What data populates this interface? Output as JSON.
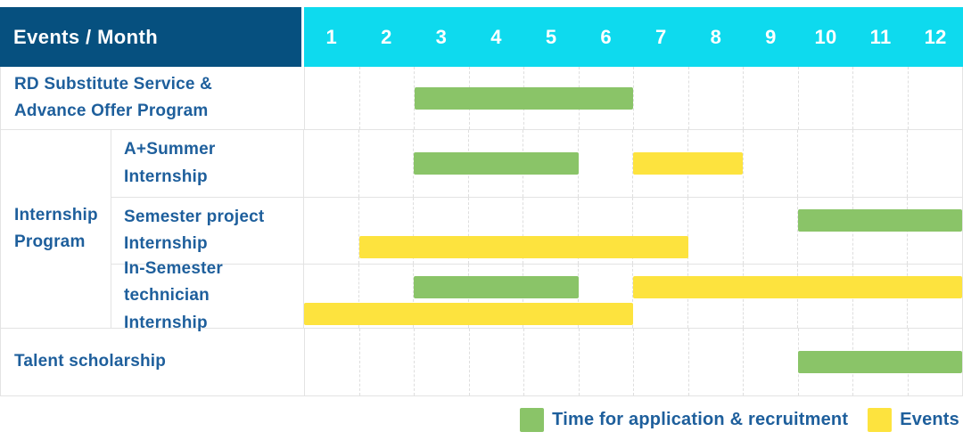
{
  "title": "Events / Month",
  "colors": {
    "header_bg": "#06507f",
    "month_header_bg": "#0edaee",
    "header_text": "#ffffff",
    "label_text": "#1e5f9c",
    "application_green": "#8ac468",
    "events_yellow": "#fde33e",
    "grid_line": "#e3e3e3"
  },
  "chart_data": {
    "type": "bar",
    "subtype": "gantt-schedule",
    "title": "Events / Month",
    "x_axis": {
      "label": "Month",
      "ticks": [
        "1",
        "2",
        "3",
        "4",
        "5",
        "6",
        "7",
        "8",
        "9",
        "10",
        "11",
        "12"
      ],
      "range": [
        1,
        12
      ]
    },
    "grid": "dashed vertical month separators",
    "legend_position": "bottom-right",
    "legend": [
      {
        "name": "Time for application & recruitment",
        "color": "#8ac468"
      },
      {
        "name": "Events",
        "color": "#fde33e"
      }
    ],
    "rows": [
      {
        "group": "",
        "label": "RD Substitute Service & Advance Offer Program",
        "bars": [
          {
            "series": "Time for application & recruitment",
            "start_month": 3,
            "end_month": 6,
            "lane": 1
          }
        ]
      },
      {
        "group": "Internship Program",
        "label": "A+Summer Internship",
        "bars": [
          {
            "series": "Time for application & recruitment",
            "start_month": 3,
            "end_month": 5,
            "lane": 1
          },
          {
            "series": "Events",
            "start_month": 7,
            "end_month": 8,
            "lane": 1
          }
        ]
      },
      {
        "group": "Internship Program",
        "label": "Semester project Internship",
        "bars": [
          {
            "series": "Time for application & recruitment",
            "start_month": 10,
            "end_month": 12,
            "lane": 1
          },
          {
            "series": "Events",
            "start_month": 2,
            "end_month": 7,
            "lane": 2
          }
        ]
      },
      {
        "group": "Internship Program",
        "label": "In-Semester technician Internship",
        "bars": [
          {
            "series": "Time for application & recruitment",
            "start_month": 3,
            "end_month": 5,
            "lane": 1
          },
          {
            "series": "Events",
            "start_month": 7,
            "end_month": 12,
            "lane": 1
          },
          {
            "series": "Events",
            "start_month": 1,
            "end_month": 6,
            "lane": 2
          }
        ]
      },
      {
        "group": "",
        "label": "Talent scholarship",
        "bars": [
          {
            "series": "Time for application & recruitment",
            "start_month": 10,
            "end_month": 12,
            "lane": 1
          }
        ]
      }
    ]
  }
}
